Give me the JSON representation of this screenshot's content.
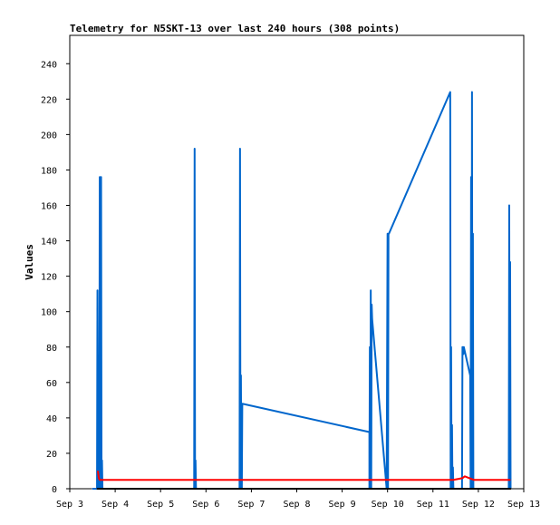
{
  "chart_data": {
    "type": "line",
    "title": "Telemetry for N5SKT-13 over last 240 hours (308 points)",
    "xlabel": "",
    "ylabel": "Values",
    "x_ticks": [
      "Sep 3",
      "Sep 4",
      "Sep 5",
      "Sep 6",
      "Sep 7",
      "Sep 8",
      "Sep 9",
      "Sep 10",
      "Sep 11",
      "Sep 12",
      "Sep 13"
    ],
    "xlim": [
      3.0,
      13.0
    ],
    "ylim": [
      0,
      256
    ],
    "y_ticks": [
      0,
      20,
      40,
      60,
      80,
      100,
      120,
      140,
      160,
      180,
      200,
      220,
      240
    ],
    "grid": false,
    "series": [
      {
        "color": "#0066cc",
        "x": [
          3.5,
          3.6,
          3.61,
          3.62,
          3.63,
          3.64,
          3.65,
          3.66,
          3.67,
          3.69,
          3.7,
          3.71,
          3.72,
          3.73,
          3.74,
          3.75,
          3.76,
          3.77,
          3.78,
          3.79,
          5.74,
          5.75,
          5.76,
          5.77,
          5.78,
          5.79,
          6.74,
          6.75,
          6.76,
          6.77,
          6.78,
          6.79,
          6.8,
          9.6,
          9.6,
          9.61,
          9.62,
          9.63,
          9.64,
          9.65,
          9.66,
          9.98,
          10.0,
          10.01,
          10.02,
          10.03,
          11.38,
          11.39,
          11.4,
          11.41,
          11.42,
          11.43,
          11.44,
          11.45,
          11.64,
          11.65,
          11.66,
          11.67,
          11.68,
          11.82,
          11.83,
          11.84,
          11.85,
          11.86,
          11.87,
          11.88,
          11.89,
          11.9,
          11.91,
          11.92,
          12.67,
          12.68,
          12.69,
          12.7,
          12.71
        ],
        "values": [
          0,
          0,
          112,
          24,
          0,
          8,
          0,
          176,
          0,
          176,
          0,
          16,
          0,
          0,
          0,
          0,
          0,
          0,
          0,
          0,
          0,
          192,
          0,
          16,
          0,
          0,
          0,
          192,
          0,
          64,
          0,
          0,
          48,
          32,
          0,
          80,
          0,
          112,
          0,
          104,
          96,
          0,
          144,
          0,
          144,
          144,
          224,
          0,
          80,
          0,
          36,
          0,
          12,
          0,
          0,
          80,
          78,
          76,
          80,
          64,
          0,
          176,
          0,
          224,
          0,
          144,
          0,
          0,
          0,
          0,
          0,
          160,
          0,
          128,
          0
        ]
      },
      {
        "color": "#ff0000",
        "x": [
          3.62,
          3.64,
          3.66,
          3.68,
          3.7,
          11.45,
          11.65,
          11.7,
          11.8,
          11.9,
          12.7
        ],
        "values": [
          10,
          6,
          5,
          5,
          5,
          5,
          6,
          7,
          6,
          5,
          5
        ]
      },
      {
        "color": "#000000",
        "x": [
          3.6,
          12.72
        ],
        "values": [
          0,
          0
        ]
      }
    ]
  }
}
